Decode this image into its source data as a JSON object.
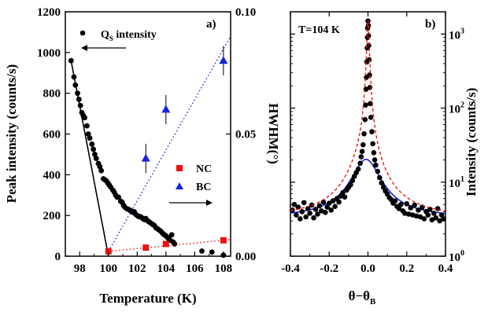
{
  "chart_data": [
    {
      "panel": "a)",
      "type": "scatter",
      "xlabel": "Temperature (K)",
      "ylabel": "Peak intensity (counts/s)",
      "y2label": "HWHM(°)",
      "xlim": [
        97,
        108.5
      ],
      "ylim": [
        0,
        1200
      ],
      "y2lim": [
        0,
        0.1
      ],
      "x_ticks": [
        98,
        100,
        102,
        104,
        106,
        108
      ],
      "y_ticks": [
        0,
        200,
        400,
        600,
        800,
        1000,
        1200
      ],
      "y2_ticks": [
        0.0,
        0.05,
        0.1
      ],
      "y2_tick_labels": [
        "0.00",
        "0.05",
        "0.10"
      ],
      "annotations": {
        "qs_label_main": "Q",
        "qs_label_sub": "S",
        "qs_label_rest": " intensity",
        "nc_label": "NC",
        "bc_label": "BC"
      },
      "colors": {
        "qs": "#000000",
        "nc": "#ee1111",
        "bc": "#1a22dd"
      },
      "series": [
        {
          "name": "Q_S intensity",
          "axis": "left",
          "marker": "circle",
          "points": [
            [
              97.4,
              960
            ],
            [
              97.6,
              880
            ],
            [
              97.7,
              840
            ],
            [
              97.85,
              800
            ],
            [
              97.95,
              770
            ],
            [
              98.05,
              740
            ],
            [
              98.15,
              705
            ],
            [
              98.25,
              690
            ],
            [
              98.35,
              680
            ],
            [
              98.5,
              640
            ],
            [
              98.6,
              600
            ],
            [
              98.7,
              580
            ],
            [
              98.85,
              550
            ],
            [
              98.95,
              525
            ],
            [
              99.05,
              500
            ],
            [
              99.15,
              480
            ],
            [
              99.3,
              455
            ],
            [
              99.4,
              440
            ],
            [
              99.5,
              420
            ],
            [
              99.65,
              380
            ],
            [
              99.75,
              375
            ],
            [
              99.85,
              370
            ],
            [
              99.95,
              360
            ],
            [
              100.05,
              350
            ],
            [
              100.15,
              340
            ],
            [
              100.3,
              325
            ],
            [
              100.4,
              315
            ],
            [
              100.5,
              300
            ],
            [
              100.6,
              290
            ],
            [
              100.7,
              290
            ],
            [
              100.85,
              270
            ],
            [
              100.95,
              265
            ],
            [
              101.05,
              250
            ],
            [
              101.15,
              240
            ],
            [
              101.3,
              232
            ],
            [
              101.4,
              230
            ],
            [
              101.5,
              225
            ],
            [
              101.6,
              222
            ],
            [
              101.7,
              215
            ],
            [
              101.8,
              218
            ],
            [
              101.9,
              205
            ],
            [
              102.0,
              200
            ],
            [
              102.1,
              195
            ],
            [
              102.2,
              195
            ],
            [
              102.3,
              190
            ],
            [
              102.4,
              185
            ],
            [
              102.5,
              180
            ],
            [
              102.6,
              185
            ],
            [
              102.7,
              175
            ],
            [
              102.8,
              170
            ],
            [
              102.9,
              165
            ],
            [
              103.0,
              160
            ],
            [
              103.1,
              155
            ],
            [
              103.2,
              150
            ],
            [
              103.3,
              140
            ],
            [
              103.4,
              135
            ],
            [
              103.5,
              130
            ],
            [
              103.6,
              125
            ],
            [
              103.7,
              118
            ],
            [
              103.8,
              110
            ],
            [
              103.9,
              105
            ],
            [
              104.0,
              100
            ],
            [
              104.1,
              92
            ],
            [
              104.2,
              85
            ],
            [
              104.3,
              78
            ],
            [
              104.4,
              105
            ],
            [
              104.5,
              70
            ],
            [
              104.6,
              60
            ],
            [
              106.5,
              25
            ],
            [
              107.2,
              20
            ],
            [
              108.0,
              5
            ]
          ],
          "fit_line": [
            [
              97.4,
              960
            ],
            [
              100,
              0
            ]
          ]
        },
        {
          "name": "NC",
          "axis": "right",
          "marker": "square",
          "points": [
            [
              100,
              0.002
            ],
            [
              102.6,
              0.0035
            ],
            [
              104,
              0.005
            ],
            [
              108,
              0.0065
            ]
          ],
          "errors": [
            0,
            0,
            0,
            0
          ],
          "fit_line": [
            [
              100,
              0.002
            ],
            [
              108.5,
              0.0068
            ]
          ]
        },
        {
          "name": "BC",
          "axis": "right",
          "marker": "triangle",
          "points": [
            [
              102.6,
              0.04
            ],
            [
              104,
              0.06
            ],
            [
              108,
              0.08
            ]
          ],
          "errors": [
            0.006,
            0.006,
            0.006
          ],
          "fit_line": [
            [
              100,
              0.002
            ],
            [
              108.5,
              0.09
            ]
          ]
        }
      ]
    },
    {
      "panel": "b)",
      "type": "scatter",
      "title_text": "T=104 K",
      "xlabel_main": "θ−θ",
      "xlabel_sub": "B",
      "ylabel": "Intensity (counts/s)",
      "xlim": [
        -0.4,
        0.4
      ],
      "ylim_log": [
        1,
        2000
      ],
      "x_ticks": [
        -0.4,
        -0.2,
        0.0,
        0.2,
        0.4
      ],
      "x_tick_labels": [
        "-0.4",
        "-0.2",
        "0.0",
        "0.2",
        "0.4"
      ],
      "y_ticks_log_exponents": [
        0,
        1,
        2,
        3
      ],
      "y_tick_base": "10",
      "scale": "log",
      "colors": {
        "data": "#000000",
        "fit_sharp": "#ee1111",
        "fit_broad": "#1a22dd"
      },
      "series": [
        {
          "name": "data",
          "marker": "circle",
          "points": [
            [
              -0.39,
              4.2
            ],
            [
              -0.38,
              5.0
            ],
            [
              -0.37,
              3.6
            ],
            [
              -0.36,
              4.6
            ],
            [
              -0.35,
              3.2
            ],
            [
              -0.34,
              4.0
            ],
            [
              -0.33,
              5.3
            ],
            [
              -0.32,
              3.4
            ],
            [
              -0.31,
              4.4
            ],
            [
              -0.3,
              3.8
            ],
            [
              -0.29,
              4.9
            ],
            [
              -0.28,
              3.3
            ],
            [
              -0.27,
              4.3
            ],
            [
              -0.26,
              3.7
            ],
            [
              -0.25,
              4.8
            ],
            [
              -0.24,
              4.1
            ],
            [
              -0.23,
              5.4
            ],
            [
              -0.22,
              3.9
            ],
            [
              -0.21,
              4.6
            ],
            [
              -0.2,
              5.2
            ],
            [
              -0.19,
              4.2
            ],
            [
              -0.18,
              5.6
            ],
            [
              -0.17,
              4.7
            ],
            [
              -0.16,
              6.0
            ],
            [
              -0.15,
              5.4
            ],
            [
              -0.14,
              6.5
            ],
            [
              -0.13,
              7.2
            ],
            [
              -0.12,
              6.3
            ],
            [
              -0.11,
              7.8
            ],
            [
              -0.1,
              8.5
            ],
            [
              -0.09,
              9.2
            ],
            [
              -0.08,
              10.5
            ],
            [
              -0.07,
              12
            ],
            [
              -0.06,
              13.5
            ],
            [
              -0.05,
              15
            ],
            [
              -0.04,
              18
            ],
            [
              -0.035,
              22
            ],
            [
              -0.03,
              26
            ],
            [
              -0.025,
              32
            ],
            [
              -0.02,
              45
            ],
            [
              -0.015,
              70
            ],
            [
              -0.012,
              110
            ],
            [
              -0.01,
              180
            ],
            [
              -0.008,
              260
            ],
            [
              -0.006,
              420
            ],
            [
              -0.004,
              650
            ],
            [
              -0.003,
              900
            ],
            [
              -0.002,
              1200
            ],
            [
              0.0,
              1500
            ],
            [
              0.002,
              1300
            ],
            [
              0.003,
              950
            ],
            [
              0.004,
              700
            ],
            [
              0.006,
              450
            ],
            [
              0.008,
              280
            ],
            [
              0.01,
              190
            ],
            [
              0.012,
              115
            ],
            [
              0.015,
              75
            ],
            [
              0.02,
              48
            ],
            [
              0.025,
              33
            ],
            [
              0.03,
              25
            ],
            [
              0.035,
              20
            ],
            [
              0.04,
              17
            ],
            [
              0.05,
              14
            ],
            [
              0.06,
              11.5
            ],
            [
              0.07,
              9.8
            ],
            [
              0.08,
              8.5
            ],
            [
              0.09,
              7.6
            ],
            [
              0.1,
              6.9
            ],
            [
              0.11,
              6.2
            ],
            [
              0.12,
              5.8
            ],
            [
              0.13,
              5.2
            ],
            [
              0.14,
              5.6
            ],
            [
              0.15,
              4.7
            ],
            [
              0.16,
              4.4
            ],
            [
              0.17,
              5.0
            ],
            [
              0.18,
              4.1
            ],
            [
              0.19,
              3.8
            ],
            [
              0.2,
              5.1
            ],
            [
              0.21,
              3.7
            ],
            [
              0.22,
              4.5
            ],
            [
              0.23,
              3.6
            ],
            [
              0.24,
              4.9
            ],
            [
              0.25,
              3.5
            ],
            [
              0.26,
              4.2
            ],
            [
              0.27,
              3.4
            ],
            [
              0.28,
              4.6
            ],
            [
              0.29,
              3.2
            ],
            [
              0.3,
              4.0
            ],
            [
              0.31,
              3.6
            ],
            [
              0.32,
              4.3
            ],
            [
              0.33,
              3.1
            ],
            [
              0.34,
              3.8
            ],
            [
              0.35,
              3.3
            ],
            [
              0.36,
              4.4
            ],
            [
              0.37,
              3.0
            ],
            [
              0.38,
              3.6
            ],
            [
              0.39,
              3.2
            ]
          ]
        },
        {
          "name": "fit_sharp",
          "line": "dashed",
          "center": 0.0,
          "amplitude": 1500,
          "hwhm": 0.006,
          "background": 3.3,
          "broad_amplitude": 16,
          "broad_hwhm": 0.07
        },
        {
          "name": "fit_broad",
          "line": "solid",
          "center": -0.01,
          "amplitude": 17,
          "hwhm": 0.07,
          "background": 3.3
        }
      ]
    }
  ]
}
